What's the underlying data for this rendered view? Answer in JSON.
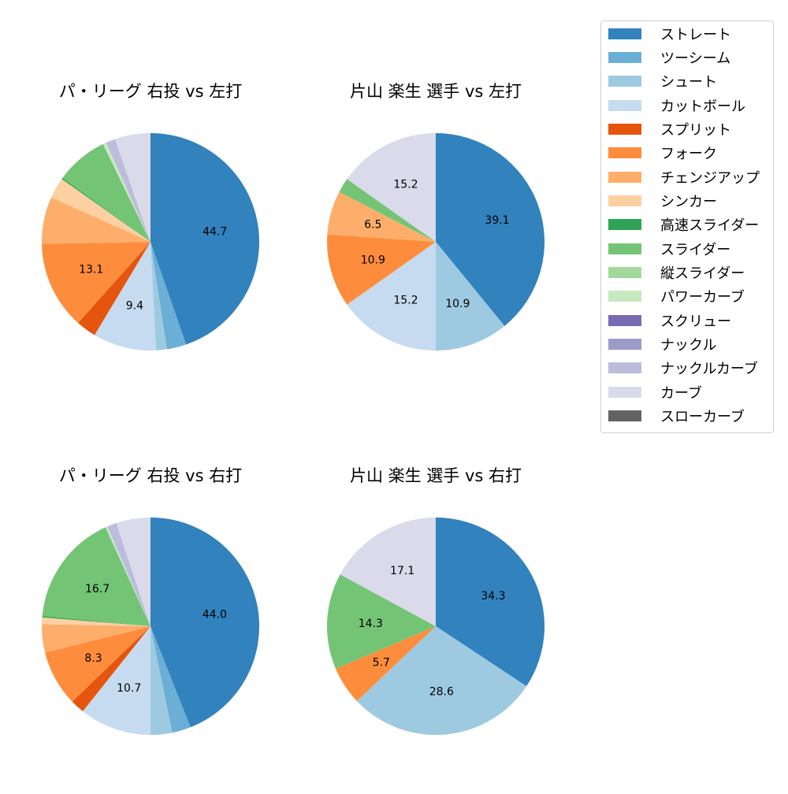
{
  "chart_data": [
    {
      "type": "pie",
      "title": "パ・リーグ 右投 vs 左打",
      "start_angle": 90,
      "direction": "clockwise",
      "categories": [
        "ストレート",
        "ツーシーム",
        "シュート",
        "カットボール",
        "スプリット",
        "フォーク",
        "チェンジアップ",
        "シンカー",
        "高速スライダー",
        "スライダー",
        "パワーカーブ",
        "ナックルカーブ",
        "カーブ"
      ],
      "values": [
        44.7,
        2.9,
        1.6,
        9.4,
        3.0,
        13.1,
        7.0,
        3.1,
        0.2,
        7.8,
        0.5,
        1.4,
        5.3
      ],
      "data_labels": [
        "44.7",
        "",
        "",
        "9.4",
        "",
        "13.1",
        "",
        "",
        "",
        "",
        "",
        "",
        ""
      ]
    },
    {
      "type": "pie",
      "title": "片山 楽生 選手 vs 左打",
      "start_angle": 90,
      "direction": "clockwise",
      "categories": [
        "ストレート",
        "シュート",
        "カットボール",
        "フォーク",
        "チェンジアップ",
        "スライダー",
        "カーブ"
      ],
      "values": [
        39.1,
        10.9,
        15.2,
        10.9,
        6.5,
        2.2,
        15.2
      ],
      "data_labels": [
        "39.1",
        "10.9",
        "15.2",
        "10.9",
        "6.5",
        "",
        "15.2"
      ]
    },
    {
      "type": "pie",
      "title": "パ・リーグ 右投 vs 右打",
      "start_angle": 90,
      "direction": "clockwise",
      "categories": [
        "ストレート",
        "ツーシーム",
        "シュート",
        "カットボール",
        "スプリット",
        "フォーク",
        "チェンジアップ",
        "シンカー",
        "高速スライダー",
        "スライダー",
        "パワーカーブ",
        "ナックルカーブ",
        "カーブ"
      ],
      "values": [
        44.0,
        2.8,
        3.2,
        10.7,
        2.1,
        8.3,
        4.2,
        1.0,
        0.2,
        16.7,
        0.3,
        1.4,
        5.1
      ],
      "data_labels": [
        "44.0",
        "",
        "",
        "10.7",
        "",
        "8.3",
        "",
        "",
        "",
        "16.7",
        "",
        "",
        ""
      ]
    },
    {
      "type": "pie",
      "title": "片山 楽生 選手 vs 右打",
      "start_angle": 90,
      "direction": "clockwise",
      "categories": [
        "ストレート",
        "シュート",
        "フォーク",
        "スライダー",
        "カーブ"
      ],
      "values": [
        34.3,
        28.6,
        5.7,
        14.3,
        17.1
      ],
      "data_labels": [
        "34.3",
        "28.6",
        "5.7",
        "14.3",
        "17.1"
      ]
    }
  ],
  "legend": {
    "position": "upper right",
    "items": [
      {
        "label": "ストレート",
        "color": "#3182bd"
      },
      {
        "label": "ツーシーム",
        "color": "#6baed6"
      },
      {
        "label": "シュート",
        "color": "#9ecae1"
      },
      {
        "label": "カットボール",
        "color": "#c6dbef"
      },
      {
        "label": "スプリット",
        "color": "#e6550d"
      },
      {
        "label": "フォーク",
        "color": "#fd8d3c"
      },
      {
        "label": "チェンジアップ",
        "color": "#fdae6b"
      },
      {
        "label": "シンカー",
        "color": "#fdd0a2"
      },
      {
        "label": "高速スライダー",
        "color": "#31a354"
      },
      {
        "label": "スライダー",
        "color": "#74c476"
      },
      {
        "label": "縦スライダー",
        "color": "#a1d99b"
      },
      {
        "label": "パワーカーブ",
        "color": "#c7e9c0"
      },
      {
        "label": "スクリュー",
        "color": "#756bb1"
      },
      {
        "label": "ナックル",
        "color": "#9e9ac8"
      },
      {
        "label": "ナックルカーブ",
        "color": "#bcbddc"
      },
      {
        "label": "カーブ",
        "color": "#dadaeb"
      },
      {
        "label": "スローカーブ",
        "color": "#636363"
      }
    ]
  }
}
